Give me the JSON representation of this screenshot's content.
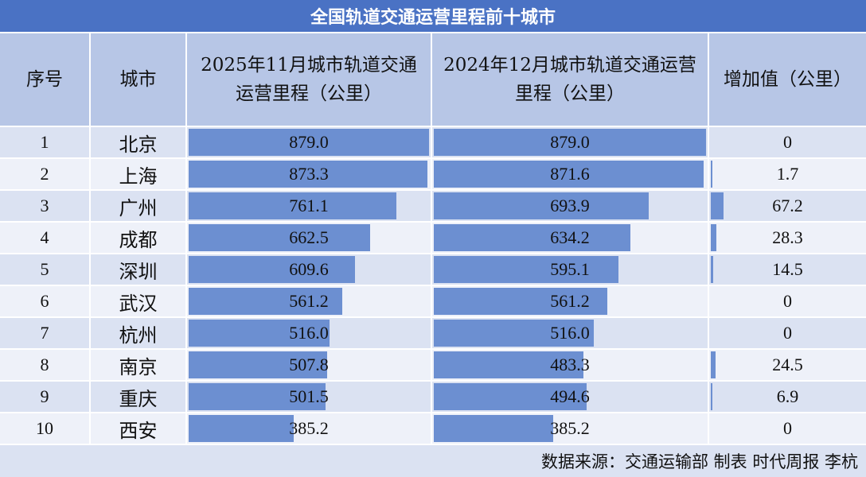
{
  "title": "全国轨道交通运营里程前十城市",
  "headers": {
    "rank": "序号",
    "city": "城市",
    "nov2025": "2025年11月城市轨道交通运营里程（公里）",
    "dec2024": "2024年12月城市轨道交通运营里程（公里）",
    "increase": "增加值（公里）"
  },
  "footer": "数据来源：交通运输部 制表 时代周报 李杭",
  "colors": {
    "title_bg": "#4a72c4",
    "bar": "#6c8fd1",
    "header_bg": "#b7c6e6"
  },
  "chart_data": {
    "type": "table",
    "title": "全国轨道交通运营里程前十城市",
    "columns": [
      "序号",
      "城市",
      "2025年11月城市轨道交通运营里程（公里）",
      "2024年12月城市轨道交通运营里程（公里）",
      "增加值（公里）"
    ],
    "rows": [
      {
        "rank": "1",
        "city": "北京",
        "nov2025": "879.0",
        "dec2024": "879.0",
        "increase": "0"
      },
      {
        "rank": "2",
        "city": "上海",
        "nov2025": "873.3",
        "dec2024": "871.6",
        "increase": "1.7"
      },
      {
        "rank": "3",
        "city": "广州",
        "nov2025": "761.1",
        "dec2024": "693.9",
        "increase": "67.2"
      },
      {
        "rank": "4",
        "city": "成都",
        "nov2025": "662.5",
        "dec2024": "634.2",
        "increase": "28.3"
      },
      {
        "rank": "5",
        "city": "深圳",
        "nov2025": "609.6",
        "dec2024": "595.1",
        "increase": "14.5"
      },
      {
        "rank": "6",
        "city": "武汉",
        "nov2025": "561.2",
        "dec2024": "561.2",
        "increase": "0"
      },
      {
        "rank": "7",
        "city": "杭州",
        "nov2025": "516.0",
        "dec2024": "516.0",
        "increase": "0"
      },
      {
        "rank": "8",
        "city": "南京",
        "nov2025": "507.8",
        "dec2024": "483.3",
        "increase": "24.5"
      },
      {
        "rank": "9",
        "city": "重庆",
        "nov2025": "501.5",
        "dec2024": "494.6",
        "increase": "6.9"
      },
      {
        "rank": "10",
        "city": "西安",
        "nov2025": "385.2",
        "dec2024": "385.2",
        "increase": "0"
      }
    ]
  }
}
